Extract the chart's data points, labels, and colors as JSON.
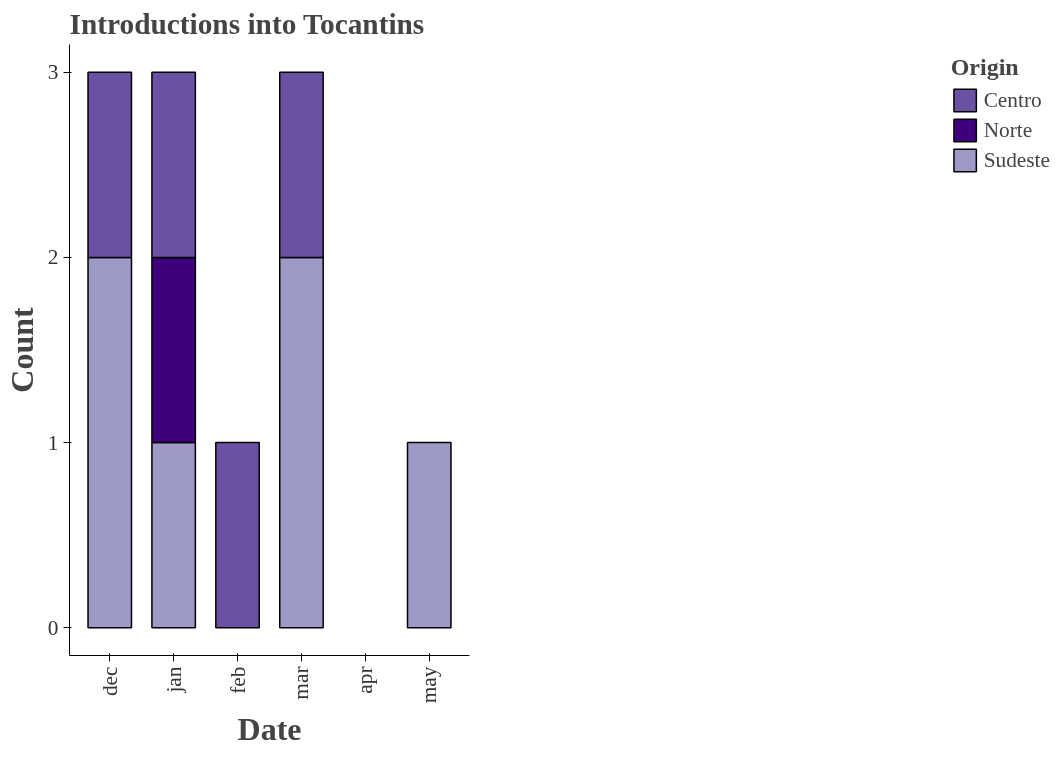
{
  "chart_data": {
    "type": "bar",
    "title": "Introductions into Tocantins",
    "xlabel": "Date",
    "ylabel": "Count",
    "legend_title": "Origin",
    "categories": [
      "dec",
      "jan",
      "feb",
      "mar",
      "apr",
      "may"
    ],
    "stacked": true,
    "series": [
      {
        "name": "Sudeste",
        "color": "#9e9ac8",
        "values": [
          2,
          1,
          null,
          2,
          null,
          1
        ]
      },
      {
        "name": "Norte",
        "color": "#3f007d",
        "values": [
          null,
          1,
          null,
          null,
          null,
          null
        ]
      },
      {
        "name": "Centro",
        "color": "#6a51a3",
        "values": [
          1,
          1,
          1,
          1,
          null,
          null
        ]
      }
    ],
    "ylim": [
      -0.15,
      3.15
    ],
    "yticks": [
      0,
      1,
      2,
      3
    ],
    "grid": false,
    "legend": "right"
  }
}
